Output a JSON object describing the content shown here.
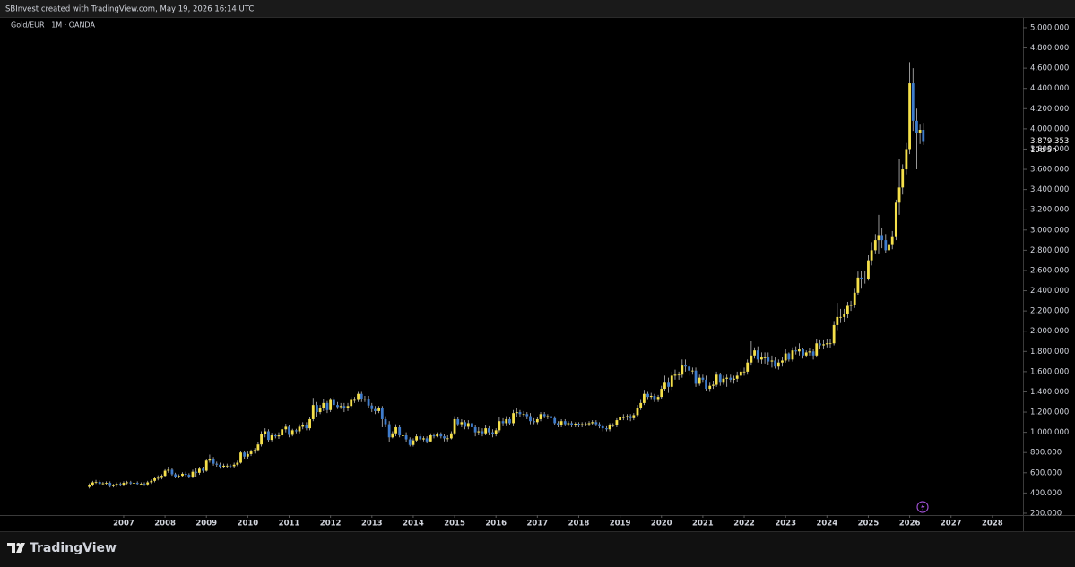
{
  "header": "SBInvest created with TradingView.com, May 19, 2026 16:14 UTC",
  "brand": "TradingView",
  "chart_data": {
    "type": "candlestick",
    "title": "Gold/EUR · 1M · OANDA",
    "last_label": "3,879.353",
    "countdown": "10d 5h",
    "up_color": "#f5e04a",
    "down_color": "#3f7ccc",
    "wick_color": "#bdbdbd",
    "xlim": [
      2004.01,
      2028.74
    ],
    "xticks": [
      2007,
      2008,
      2009,
      2010,
      2011,
      2012,
      2013,
      2014,
      2015,
      2016,
      2017,
      2018,
      2019,
      2020,
      2021,
      2022,
      2023,
      2024,
      2025,
      2026,
      2027,
      2028
    ],
    "ylim": [
      182,
      5097
    ],
    "yticks": [
      {
        "value": 200,
        "label": "200.000"
      },
      {
        "value": 400,
        "label": "400.000"
      },
      {
        "value": 600,
        "label": "600.000"
      },
      {
        "value": 800,
        "label": "800.000"
      },
      {
        "value": 1000,
        "label": "1,000.000"
      },
      {
        "value": 1200,
        "label": "1,200.000"
      },
      {
        "value": 1400,
        "label": "1,400.000"
      },
      {
        "value": 1600,
        "label": "1,600.000"
      },
      {
        "value": 1800,
        "label": "1,800.000"
      },
      {
        "value": 2000,
        "label": "2,000.000"
      },
      {
        "value": 2200,
        "label": "2,200.000"
      },
      {
        "value": 2400,
        "label": "2,400.000"
      },
      {
        "value": 2600,
        "label": "2,600.000"
      },
      {
        "value": 2800,
        "label": "2,800.000"
      },
      {
        "value": 3000,
        "label": "3,000.000"
      },
      {
        "value": 3200,
        "label": "3,200.000"
      },
      {
        "value": 3400,
        "label": "3,400.000"
      },
      {
        "value": 3600,
        "label": "3,600.000"
      },
      {
        "value": 3800,
        "label": "3,800.000"
      },
      {
        "value": 4000,
        "label": "4,000.000"
      },
      {
        "value": 4200,
        "label": "4,200.000"
      },
      {
        "value": 4400,
        "label": "4,400.000"
      },
      {
        "value": 4600,
        "label": "4,600.000"
      },
      {
        "value": 4800,
        "label": "4,800.000"
      },
      {
        "value": 5000,
        "label": "5,000.000"
      }
    ],
    "x": [
      2006.17,
      2006.25,
      2006.33,
      2006.42,
      2006.5,
      2006.58,
      2006.67,
      2006.75,
      2006.83,
      2006.92,
      2007,
      2007.08,
      2007.17,
      2007.25,
      2007.33,
      2007.42,
      2007.5,
      2007.58,
      2007.67,
      2007.75,
      2007.83,
      2007.92,
      2008,
      2008.08,
      2008.17,
      2008.25,
      2008.33,
      2008.42,
      2008.5,
      2008.58,
      2008.67,
      2008.75,
      2008.83,
      2008.92,
      2009,
      2009.08,
      2009.17,
      2009.25,
      2009.33,
      2009.42,
      2009.5,
      2009.58,
      2009.67,
      2009.75,
      2009.83,
      2009.92,
      2010,
      2010.08,
      2010.17,
      2010.25,
      2010.33,
      2010.42,
      2010.5,
      2010.58,
      2010.67,
      2010.75,
      2010.83,
      2010.92,
      2011,
      2011.08,
      2011.17,
      2011.25,
      2011.33,
      2011.42,
      2011.5,
      2011.58,
      2011.67,
      2011.75,
      2011.83,
      2011.92,
      2012,
      2012.08,
      2012.17,
      2012.25,
      2012.33,
      2012.42,
      2012.5,
      2012.58,
      2012.67,
      2012.75,
      2012.83,
      2012.92,
      2013,
      2013.08,
      2013.17,
      2013.25,
      2013.33,
      2013.42,
      2013.5,
      2013.58,
      2013.67,
      2013.75,
      2013.83,
      2013.92,
      2014,
      2014.08,
      2014.17,
      2014.25,
      2014.33,
      2014.42,
      2014.5,
      2014.58,
      2014.67,
      2014.75,
      2014.83,
      2014.92,
      2015,
      2015.08,
      2015.17,
      2015.25,
      2015.33,
      2015.42,
      2015.5,
      2015.58,
      2015.67,
      2015.75,
      2015.83,
      2015.92,
      2016,
      2016.08,
      2016.17,
      2016.25,
      2016.33,
      2016.42,
      2016.5,
      2016.58,
      2016.67,
      2016.75,
      2016.83,
      2016.92,
      2017,
      2017.08,
      2017.17,
      2017.25,
      2017.33,
      2017.42,
      2017.5,
      2017.58,
      2017.67,
      2017.75,
      2017.83,
      2017.92,
      2018,
      2018.08,
      2018.17,
      2018.25,
      2018.33,
      2018.42,
      2018.5,
      2018.58,
      2018.67,
      2018.75,
      2018.83,
      2018.92,
      2019,
      2019.08,
      2019.17,
      2019.25,
      2019.33,
      2019.42,
      2019.5,
      2019.58,
      2019.67,
      2019.75,
      2019.83,
      2019.92,
      2020,
      2020.08,
      2020.17,
      2020.25,
      2020.33,
      2020.42,
      2020.5,
      2020.58,
      2020.67,
      2020.75,
      2020.83,
      2020.92,
      2021,
      2021.08,
      2021.17,
      2021.25,
      2021.33,
      2021.42,
      2021.5,
      2021.58,
      2021.67,
      2021.75,
      2021.83,
      2021.92,
      2022,
      2022.08,
      2022.17,
      2022.25,
      2022.33,
      2022.42,
      2022.5,
      2022.58,
      2022.67,
      2022.75,
      2022.83,
      2022.92,
      2023,
      2023.08,
      2023.17,
      2023.25,
      2023.33,
      2023.42,
      2023.5,
      2023.58,
      2023.67,
      2023.75,
      2023.83,
      2023.92,
      2024,
      2024.08,
      2024.17,
      2024.25,
      2024.33,
      2024.42,
      2024.5,
      2024.58,
      2024.67,
      2024.75,
      2024.83,
      2024.92,
      2025,
      2025.08,
      2025.17,
      2025.25,
      2025.33,
      2025.42,
      2025.5,
      2025.58,
      2025.67,
      2025.75,
      2025.83,
      2025.92,
      2026,
      2026.08,
      2026.17,
      2026.25,
      2026.33
    ],
    "open": [
      460,
      480,
      505,
      510,
      490,
      495,
      500,
      470,
      475,
      490,
      480,
      500,
      505,
      495,
      500,
      490,
      490,
      485,
      505,
      520,
      545,
      550,
      570,
      620,
      630,
      585,
      560,
      570,
      590,
      580,
      560,
      610,
      600,
      640,
      620,
      720,
      740,
      690,
      680,
      660,
      670,
      670,
      665,
      680,
      700,
      800,
      760,
      785,
      810,
      825,
      880,
      980,
      1010,
      925,
      970,
      960,
      970,
      1030,
      1055,
      975,
      1020,
      1010,
      1055,
      1075,
      1040,
      1130,
      1270,
      1200,
      1240,
      1290,
      1220,
      1320,
      1270,
      1250,
      1260,
      1240,
      1260,
      1320,
      1320,
      1380,
      1330,
      1330,
      1265,
      1230,
      1210,
      1240,
      1130,
      1080,
      950,
      990,
      1050,
      970,
      970,
      930,
      875,
      920,
      960,
      930,
      940,
      910,
      970,
      960,
      980,
      960,
      940,
      940,
      990,
      1130,
      1080,
      1100,
      1055,
      1090,
      1050,
      1000,
      1010,
      990,
      1040,
      1000,
      980,
      1020,
      1110,
      1090,
      1130,
      1090,
      1190,
      1200,
      1180,
      1180,
      1160,
      1110,
      1100,
      1130,
      1180,
      1160,
      1160,
      1140,
      1090,
      1070,
      1110,
      1080,
      1090,
      1070,
      1085,
      1070,
      1080,
      1080,
      1090,
      1100,
      1080,
      1060,
      1040,
      1030,
      1070,
      1070,
      1120,
      1150,
      1150,
      1160,
      1140,
      1170,
      1240,
      1290,
      1380,
      1350,
      1360,
      1320,
      1350,
      1430,
      1490,
      1450,
      1560,
      1570,
      1570,
      1660,
      1650,
      1610,
      1610,
      1480,
      1540,
      1520,
      1430,
      1460,
      1470,
      1570,
      1490,
      1530,
      1540,
      1520,
      1530,
      1560,
      1600,
      1600,
      1690,
      1760,
      1810,
      1720,
      1740,
      1740,
      1700,
      1710,
      1650,
      1690,
      1710,
      1780,
      1720,
      1810,
      1800,
      1820,
      1760,
      1790,
      1800,
      1760,
      1880,
      1860,
      1870,
      1880,
      1880,
      2060,
      2140,
      2140,
      2170,
      2250,
      2260,
      2380,
      2530,
      2520,
      2520,
      2700,
      2800,
      2900,
      2950,
      2900,
      2800,
      2860,
      2930,
      3270,
      3420,
      3600,
      3800,
      4450,
      4080,
      3960,
      3990
    ],
    "high": [
      495,
      520,
      530,
      525,
      510,
      515,
      515,
      490,
      505,
      505,
      515,
      520,
      520,
      515,
      515,
      505,
      505,
      520,
      535,
      560,
      575,
      585,
      635,
      660,
      650,
      600,
      585,
      605,
      610,
      595,
      630,
      650,
      660,
      660,
      740,
      780,
      755,
      710,
      700,
      690,
      690,
      685,
      700,
      720,
      820,
      820,
      810,
      830,
      845,
      900,
      1010,
      1040,
      1030,
      995,
      990,
      1000,
      1060,
      1085,
      1070,
      1035,
      1035,
      1080,
      1100,
      1100,
      1150,
      1340,
      1300,
      1270,
      1330,
      1310,
      1340,
      1350,
      1300,
      1290,
      1290,
      1290,
      1350,
      1350,
      1400,
      1400,
      1360,
      1360,
      1290,
      1260,
      1260,
      1260,
      1160,
      1110,
      1010,
      1080,
      1070,
      1000,
      1000,
      950,
      940,
      985,
      990,
      960,
      960,
      990,
      990,
      1000,
      1000,
      980,
      970,
      1010,
      1160,
      1150,
      1130,
      1120,
      1120,
      1110,
      1070,
      1050,
      1040,
      1070,
      1060,
      1030,
      1040,
      1150,
      1140,
      1160,
      1150,
      1220,
      1240,
      1220,
      1210,
      1200,
      1190,
      1140,
      1150,
      1200,
      1200,
      1180,
      1180,
      1160,
      1110,
      1130,
      1130,
      1110,
      1110,
      1100,
      1100,
      1100,
      1100,
      1110,
      1120,
      1120,
      1100,
      1080,
      1060,
      1090,
      1090,
      1140,
      1170,
      1180,
      1180,
      1180,
      1190,
      1270,
      1320,
      1420,
      1400,
      1390,
      1380,
      1370,
      1460,
      1560,
      1540,
      1600,
      1620,
      1600,
      1720,
      1720,
      1680,
      1640,
      1640,
      1570,
      1570,
      1560,
      1490,
      1510,
      1600,
      1590,
      1560,
      1570,
      1570,
      1560,
      1600,
      1630,
      1640,
      1720,
      1900,
      1840,
      1850,
      1790,
      1790,
      1790,
      1760,
      1740,
      1720,
      1750,
      1820,
      1790,
      1840,
      1850,
      1880,
      1830,
      1810,
      1830,
      1820,
      1920,
      1910,
      1910,
      1920,
      1920,
      2100,
      2280,
      2220,
      2220,
      2290,
      2300,
      2420,
      2590,
      2600,
      2600,
      2750,
      2880,
      2960,
      3150,
      3020,
      2960,
      2920,
      2990,
      3300,
      3700,
      3650,
      3860,
      4660,
      4600,
      4200,
      4050,
      4060
    ],
    "low": [
      445,
      465,
      490,
      475,
      475,
      480,
      455,
      455,
      460,
      465,
      465,
      485,
      480,
      480,
      475,
      475,
      470,
      470,
      490,
      505,
      525,
      535,
      555,
      600,
      570,
      545,
      545,
      555,
      565,
      545,
      545,
      560,
      580,
      600,
      610,
      700,
      670,
      660,
      640,
      650,
      650,
      650,
      650,
      665,
      690,
      740,
      740,
      765,
      790,
      810,
      860,
      950,
      900,
      910,
      940,
      935,
      950,
      1000,
      950,
      960,
      990,
      990,
      1030,
      1020,
      1020,
      1110,
      1150,
      1180,
      1210,
      1190,
      1200,
      1250,
      1230,
      1230,
      1200,
      1210,
      1230,
      1290,
      1300,
      1300,
      1300,
      1240,
      1200,
      1180,
      1190,
      1050,
      1050,
      900,
      940,
      960,
      950,
      940,
      900,
      860,
      860,
      900,
      920,
      910,
      890,
      900,
      940,
      950,
      940,
      910,
      910,
      930,
      970,
      1060,
      1050,
      1030,
      1030,
      1020,
      960,
      970,
      960,
      970,
      970,
      950,
      960,
      1000,
      1060,
      1060,
      1070,
      1060,
      1150,
      1150,
      1150,
      1130,
      1080,
      1080,
      1080,
      1110,
      1140,
      1130,
      1110,
      1070,
      1050,
      1050,
      1060,
      1060,
      1050,
      1050,
      1050,
      1050,
      1060,
      1060,
      1070,
      1060,
      1040,
      1010,
      1010,
      1010,
      1050,
      1050,
      1100,
      1120,
      1120,
      1110,
      1120,
      1150,
      1220,
      1270,
      1320,
      1320,
      1300,
      1300,
      1330,
      1410,
      1390,
      1420,
      1520,
      1520,
      1540,
      1600,
      1560,
      1570,
      1450,
      1460,
      1490,
      1410,
      1400,
      1430,
      1450,
      1460,
      1470,
      1450,
      1490,
      1480,
      1500,
      1530,
      1560,
      1570,
      1660,
      1730,
      1690,
      1680,
      1680,
      1670,
      1640,
      1630,
      1620,
      1650,
      1690,
      1700,
      1700,
      1770,
      1760,
      1730,
      1740,
      1760,
      1720,
      1740,
      1820,
      1820,
      1840,
      1830,
      1860,
      2010,
      2080,
      2090,
      2130,
      2200,
      2230,
      2360,
      2420,
      2470,
      2500,
      2650,
      2760,
      2760,
      2820,
      2770,
      2770,
      2810,
      2900,
      3150,
      3350,
      3550,
      3750,
      3980,
      3600,
      3850,
      3840
    ],
    "close": [
      480,
      505,
      510,
      490,
      495,
      500,
      470,
      475,
      490,
      480,
      500,
      505,
      495,
      500,
      490,
      490,
      485,
      505,
      520,
      545,
      550,
      570,
      620,
      630,
      585,
      560,
      570,
      590,
      580,
      560,
      610,
      600,
      640,
      620,
      720,
      740,
      690,
      680,
      660,
      670,
      670,
      665,
      680,
      700,
      800,
      760,
      785,
      810,
      825,
      880,
      980,
      1010,
      925,
      970,
      960,
      970,
      1030,
      1055,
      975,
      1020,
      1010,
      1055,
      1075,
      1040,
      1130,
      1270,
      1200,
      1240,
      1290,
      1220,
      1320,
      1270,
      1250,
      1260,
      1240,
      1260,
      1320,
      1320,
      1380,
      1330,
      1330,
      1265,
      1230,
      1210,
      1240,
      1130,
      1080,
      950,
      990,
      1050,
      970,
      970,
      930,
      875,
      920,
      960,
      930,
      940,
      910,
      970,
      960,
      980,
      960,
      940,
      940,
      990,
      1130,
      1080,
      1100,
      1055,
      1090,
      1050,
      1000,
      1010,
      990,
      1040,
      1000,
      980,
      1020,
      1110,
      1090,
      1130,
      1090,
      1190,
      1200,
      1180,
      1180,
      1160,
      1110,
      1100,
      1130,
      1180,
      1160,
      1160,
      1140,
      1090,
      1070,
      1110,
      1080,
      1090,
      1070,
      1085,
      1070,
      1080,
      1080,
      1090,
      1100,
      1080,
      1060,
      1040,
      1030,
      1070,
      1070,
      1120,
      1150,
      1150,
      1160,
      1140,
      1170,
      1240,
      1290,
      1380,
      1350,
      1360,
      1320,
      1350,
      1430,
      1490,
      1450,
      1560,
      1570,
      1570,
      1660,
      1650,
      1610,
      1610,
      1480,
      1540,
      1520,
      1430,
      1460,
      1470,
      1570,
      1490,
      1530,
      1540,
      1520,
      1530,
      1560,
      1600,
      1600,
      1690,
      1760,
      1810,
      1720,
      1740,
      1740,
      1700,
      1710,
      1650,
      1690,
      1710,
      1780,
      1720,
      1810,
      1800,
      1820,
      1760,
      1790,
      1800,
      1760,
      1880,
      1860,
      1870,
      1880,
      1880,
      2060,
      2140,
      2140,
      2170,
      2250,
      2260,
      2380,
      2530,
      2520,
      2520,
      2700,
      2800,
      2900,
      2950,
      2900,
      2800,
      2860,
      2930,
      3270,
      3420,
      3600,
      3800,
      4450,
      4080,
      3960,
      3990,
      3879.353
    ]
  }
}
